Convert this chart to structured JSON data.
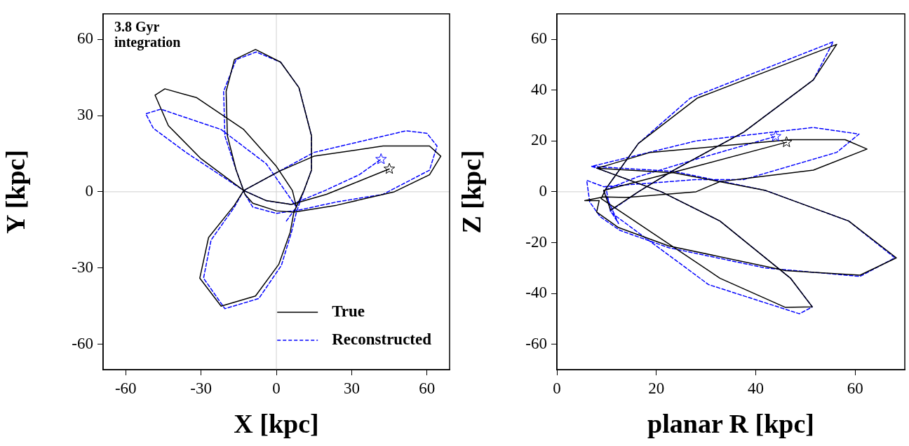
{
  "chart_data": [
    {
      "type": "line",
      "xlabel": "X [kpc]",
      "ylabel": "Y [kpc]",
      "xlim": [
        -69,
        69
      ],
      "ylim": [
        -70,
        70
      ],
      "xticks": [
        -60,
        -30,
        0,
        30,
        60
      ],
      "yticks": [
        -60,
        -30,
        0,
        30,
        60
      ],
      "legend": "bottom right",
      "annotations": [
        "3.8 Gyr integration"
      ],
      "ref_lines": [
        {
          "axis": "x",
          "value": 0,
          "color": "#d0d0d0"
        },
        {
          "axis": "y",
          "value": 0,
          "color": "#d0d0d0"
        }
      ],
      "series": [
        {
          "name": "True",
          "color": "#000000",
          "line_style": "solid",
          "x": [
            8,
            6.4,
            0,
            -13,
            -31.7,
            -44.4,
            -48.3,
            -43,
            -30,
            -13,
            -16.7,
            -27,
            -30.5,
            -22,
            -8.3,
            1,
            5.5,
            7,
            11,
            14,
            14,
            9,
            1.7,
            -8.3,
            -16.7,
            -20,
            -19.5,
            -16,
            -12.5,
            -9.4,
            0,
            7,
            24,
            47,
            61,
            65.5,
            61,
            42.5,
            15,
            1,
            -13,
            -4,
            6,
            20,
            30,
            45
          ],
          "values": [
            -6,
            0.5,
            10,
            24.5,
            37,
            40.5,
            38,
            26,
            13,
            0.5,
            -5.3,
            -18,
            -34,
            -45,
            -41,
            -28.5,
            -16,
            -8,
            0.5,
            8.5,
            22,
            41,
            51,
            56,
            52,
            39.5,
            22,
            8.5,
            -1,
            -4.5,
            -7.5,
            -8,
            -5.3,
            0,
            6.7,
            14,
            18,
            18,
            14,
            8,
            0.5,
            -3.5,
            -5,
            -1,
            3,
            9
          ]
        },
        {
          "name": "Reconstructed",
          "color": "#0000ff",
          "line_style": "dashed",
          "x": [
            4,
            8,
            -4,
            -22,
            -46,
            -52,
            -49,
            -36,
            -13,
            -16.7,
            -26,
            -29,
            -20.5,
            -7,
            2,
            6,
            8,
            11,
            14,
            14,
            9,
            1.7,
            -8,
            -16,
            -21,
            -20.5,
            -16,
            -12.5,
            -9.4,
            0,
            10,
            24,
            42.5,
            61,
            64,
            60,
            51.7,
            15,
            1,
            -13,
            -4,
            6,
            19.4,
            33,
            41.7
          ],
          "values": [
            -11.5,
            -6,
            11,
            24.5,
            32.5,
            30.7,
            25,
            15.5,
            0.5,
            -6,
            -19,
            -34,
            -46,
            -42,
            -29,
            -16,
            -8,
            0.5,
            8.5,
            22,
            41,
            51,
            55,
            52,
            39.5,
            22,
            8.5,
            -1,
            -6,
            -8.5,
            -7,
            -4,
            -1,
            8.5,
            18,
            23,
            24,
            15.5,
            8,
            0.5,
            -3.5,
            -5,
            0.5,
            6.7,
            12.8
          ]
        },
        {
          "type": "scatter",
          "marker": "star",
          "color": "#000000",
          "x": [
            45
          ],
          "values": [
            9
          ]
        },
        {
          "type": "scatter",
          "marker": "star",
          "color": "#0000ff",
          "x": [
            41.7
          ],
          "values": [
            12.8
          ]
        }
      ]
    },
    {
      "type": "line",
      "xlabel": "planar R [kpc]",
      "ylabel": "Z [kpc]",
      "xlim": [
        0,
        70
      ],
      "ylim": [
        -70,
        70
      ],
      "xticks": [
        0,
        20,
        40,
        60
      ],
      "yticks": [
        -60,
        -40,
        -20,
        0,
        20,
        40,
        60
      ],
      "ref_lines": [
        {
          "axis": "y",
          "value": 0,
          "color": "#d0d0d0"
        }
      ],
      "series": [
        {
          "color": "#000000",
          "line_style": "solid",
          "x": [
            8,
            23.5,
            42,
            58.7,
            68.3,
            61,
            46,
            22.5,
            12.3,
            8,
            8.5,
            5.6,
            9.4,
            14,
            28,
            32.8,
            51.6,
            62.4,
            58,
            47,
            18.8,
            9.4,
            8,
            21,
            32.8,
            47,
            51.4,
            46,
            32.8,
            8.9,
            9.9,
            16.4,
            28.2,
            56.3,
            51.6,
            37.6,
            23.5,
            16.4,
            10.8,
            9.4,
            28,
            46.2
          ],
          "values": [
            9.3,
            7.5,
            0.5,
            -11.5,
            -26,
            -32.8,
            -31,
            -21.3,
            -14,
            -8,
            -3.5,
            -3.5,
            -2,
            -2.2,
            0,
            4,
            8.5,
            16.8,
            20.5,
            20.5,
            15.5,
            10,
            9.3,
            0,
            -11.5,
            -34,
            -45.3,
            -45.5,
            -34,
            -2.7,
            1.3,
            19,
            36.8,
            58,
            44,
            23.5,
            8.5,
            0,
            -7.2,
            0.5,
            10,
            19.5
          ]
        },
        {
          "color": "#0000ff",
          "line_style": "dashed",
          "x": [
            7,
            23.5,
            42,
            58.7,
            68,
            61,
            42,
            22.5,
            12.7,
            8.7,
            6.6,
            6,
            9.4,
            16,
            28,
            37.6,
            56.3,
            60.8,
            51.6,
            28,
            7,
            8,
            21,
            32.8,
            47,
            51.4,
            48.8,
            30.5,
            10.8,
            9.9,
            16.4,
            26.8,
            55.6,
            51.6,
            37.6,
            23.5,
            16.4,
            10.8,
            12.4,
            9.4,
            16.4,
            28,
            44
          ],
          "values": [
            10,
            8,
            0.5,
            -11.5,
            -26,
            -33.3,
            -30,
            -22,
            -15.2,
            -9.8,
            -4,
            4.5,
            2,
            3,
            4.8,
            4.8,
            15.5,
            22.7,
            25.3,
            20,
            10,
            9.3,
            0,
            -11.5,
            -34,
            -45.3,
            -48,
            -36.5,
            -8,
            1.3,
            19,
            36.8,
            59,
            44,
            23.5,
            8.5,
            0,
            -7.5,
            -12.5,
            0.5,
            6,
            12.8,
            21.8
          ]
        },
        {
          "type": "scatter",
          "marker": "star",
          "color": "#000000",
          "x": [
            46.2
          ],
          "values": [
            19.5
          ]
        },
        {
          "type": "scatter",
          "marker": "star",
          "color": "#0000ff",
          "x": [
            44
          ],
          "values": [
            21.8
          ]
        }
      ]
    }
  ]
}
